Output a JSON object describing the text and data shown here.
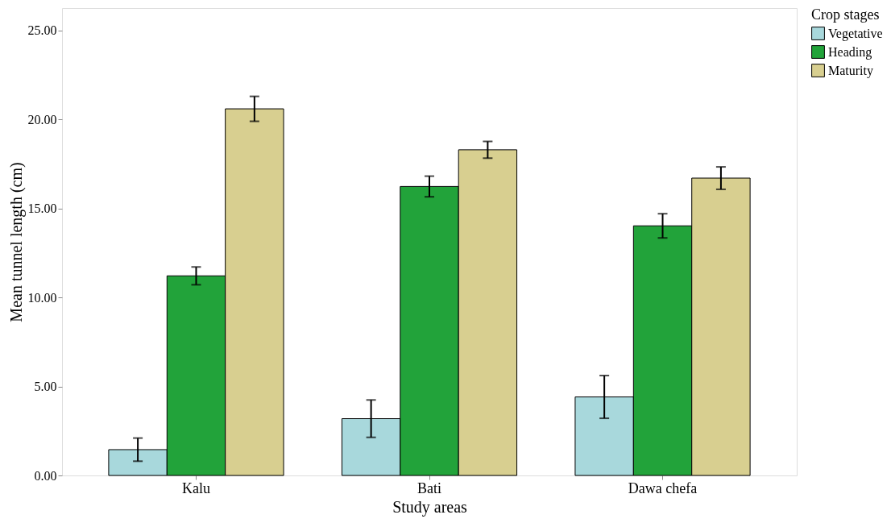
{
  "chart_data": {
    "type": "bar",
    "xlabel": "Study areas",
    "ylabel": "Mean tunnel length (cm)",
    "legend_title": "Crop stages",
    "categories": [
      "Kalu",
      "Bati",
      "Dawa chefa"
    ],
    "series": [
      {
        "name": "Vegetative",
        "color": "#a8d8dc",
        "values": [
          1.45,
          3.19,
          4.41
        ],
        "errors": [
          0.65,
          1.05,
          1.2
        ]
      },
      {
        "name": "Heading",
        "color": "#22a33a",
        "values": [
          11.21,
          16.23,
          14.02
        ],
        "errors": [
          0.5,
          0.58,
          0.68
        ]
      },
      {
        "name": "Maturity",
        "color": "#d8cf90",
        "values": [
          20.59,
          18.29,
          16.7
        ],
        "errors": [
          0.7,
          0.47,
          0.63
        ]
      }
    ],
    "ylim": [
      0,
      26.25
    ],
    "yticks": [
      {
        "value": 0,
        "label": "0.00"
      },
      {
        "value": 5,
        "label": "5.00"
      },
      {
        "value": 10,
        "label": "10.00"
      },
      {
        "value": 15,
        "label": "15.00"
      },
      {
        "value": 20,
        "label": "20.00"
      },
      {
        "value": 25,
        "label": "25.00"
      }
    ],
    "grid": false,
    "legend": "top right"
  }
}
